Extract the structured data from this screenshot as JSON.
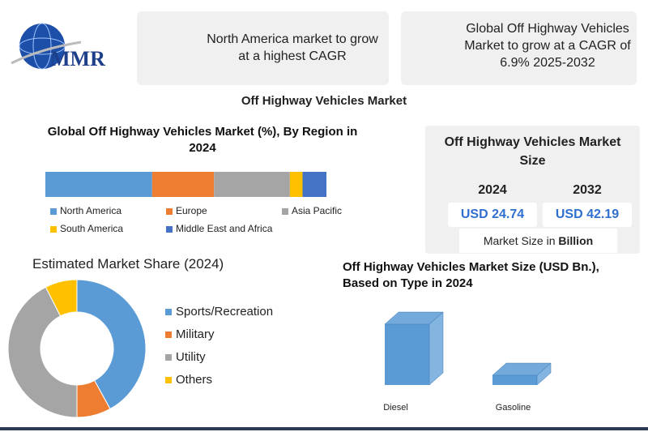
{
  "header": {
    "logo": "MMR",
    "boxes": [
      "North America market to grow at a highest CAGR",
      "Global Off Highway Vehicles Market to grow at a CAGR of 6.9% 2025-2032"
    ]
  },
  "title": "Off Highway Vehicles Market",
  "market_size": {
    "title": "Off Highway Vehicles Market Size",
    "years": [
      "2024",
      "2032"
    ],
    "values": [
      "USD 24.74",
      "USD 42.19"
    ],
    "note": "Market Size in",
    "note_unit": "Billion"
  },
  "chart_data": [
    {
      "type": "stacked_bar",
      "title": "Global Off Highway Vehicles Market (%), By Region in 2024",
      "xlim": [
        0,
        100
      ],
      "series": [
        {
          "name": "North America",
          "color": "#5b9bd5",
          "values": [
            38
          ]
        },
        {
          "name": "Europe",
          "color": "#ed7d31",
          "values": [
            22
          ]
        },
        {
          "name": "Asia Pacific",
          "color": "#a5a5a5",
          "values": [
            27
          ]
        },
        {
          "name": "South America",
          "color": "#ffc000",
          "values": [
            4.5
          ]
        },
        {
          "name": "Middle East and Africa",
          "color": "#4472c4",
          "values": [
            8.5
          ]
        }
      ]
    },
    {
      "type": "donut",
      "title": "Estimated Market Share (2024)",
      "categories": [
        "Sports/Recreation",
        "Military",
        "Utility",
        "Others"
      ],
      "values": [
        42,
        8,
        42.5,
        7.5
      ],
      "colors": [
        "#5b9bd5",
        "#ed7d31",
        "#a5a5a5",
        "#ffc000"
      ]
    },
    {
      "type": "bar3d",
      "title": "Off Highway Vehicles Market Size (USD Bn.), Based on Type in 2024",
      "categories": [
        "Diesel",
        "Gasoline"
      ],
      "values": [
        21.3,
        3.4
      ],
      "ylim": [
        0,
        25
      ],
      "color": "#5b9bd5"
    }
  ]
}
